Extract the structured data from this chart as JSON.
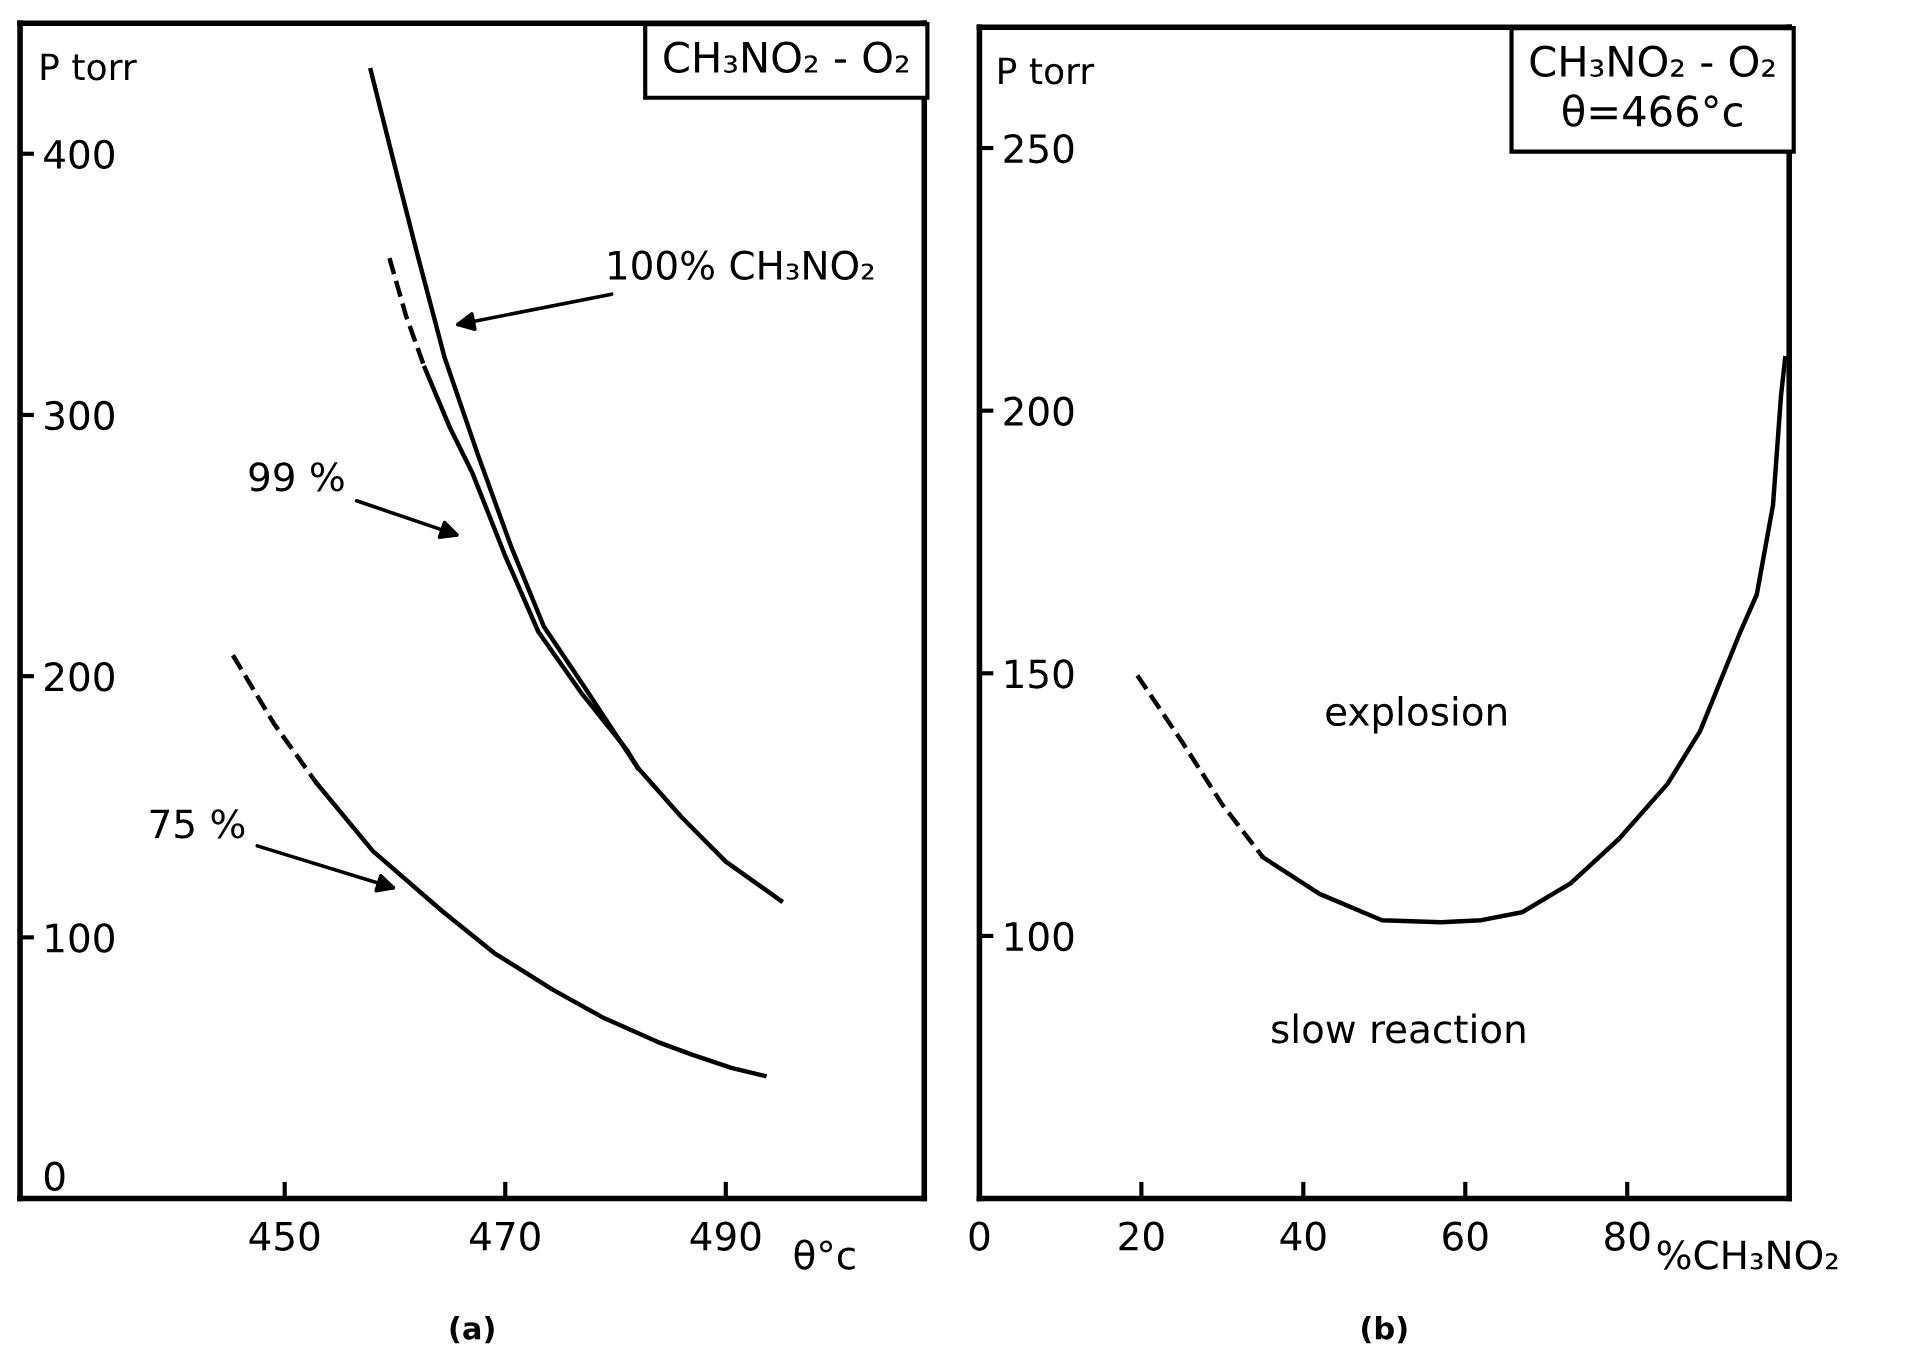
{
  "chart_data": [
    {
      "type": "line",
      "title": "CH₃NO₂ - O₂",
      "xlabel": "θ°c",
      "ylabel": "P torr",
      "xlim": [
        426,
        508
      ],
      "ylim": [
        0,
        450
      ],
      "xticks": [
        450,
        470,
        490
      ],
      "yticks": [
        0,
        100,
        200,
        300,
        400
      ],
      "grid": false,
      "series": [
        {
          "color": "#000000",
          "line_style": "solid",
          "x": [
            457.8,
            460,
            462,
            464.5,
            467.5,
            470.5,
            473.5,
            477,
            482,
            486,
            490,
            495
          ],
          "values": [
            432,
            395,
            362,
            322,
            285,
            250,
            219,
            197,
            165,
            146,
            129,
            114
          ]
        },
        {
          "color": "#000000",
          "line_style": "dashed",
          "x": [
            459.5,
            461,
            462.7
          ],
          "values": [
            360,
            338,
            318
          ]
        },
        {
          "color": "#000000",
          "line_style": "solid",
          "x": [
            462.7,
            465,
            467,
            470,
            473,
            477,
            481,
            482
          ],
          "values": [
            318,
            295,
            278,
            246,
            217,
            193,
            172,
            165
          ]
        },
        {
          "color": "#000000",
          "line_style": "dashed",
          "x": [
            445.3,
            449,
            452.9
          ],
          "values": [
            208,
            182,
            159
          ]
        },
        {
          "color": "#000000",
          "line_style": "solid",
          "x": [
            452.9,
            458,
            464.3,
            469,
            474.3,
            479,
            483.8,
            487,
            490.5,
            493.5
          ],
          "values": [
            159,
            133,
            110,
            94,
            80,
            69,
            60,
            55,
            50,
            47
          ]
        }
      ],
      "annotations": [
        "100% CH₃NO₂",
        "99 %",
        "75 %",
        "(a)"
      ]
    },
    {
      "type": "line",
      "title": "CH₃NO₂ - O₂",
      "subtitle": "θ=466°c",
      "xlabel": "%CH₃NO₂",
      "ylabel": "P torr",
      "xlim": [
        0,
        100
      ],
      "ylim": [
        50,
        273
      ],
      "xticks": [
        0,
        20,
        40,
        60,
        80
      ],
      "yticks": [
        100,
        150,
        200,
        250
      ],
      "grid": false,
      "series": [
        {
          "color": "#000000",
          "line_style": "dashed",
          "x": [
            19.5,
            25,
            30,
            35
          ],
          "values": [
            149.6,
            137,
            125,
            115
          ]
        },
        {
          "color": "#000000",
          "line_style": "solid",
          "x": [
            35,
            42,
            49.7,
            57,
            62,
            67,
            73,
            79,
            85,
            89,
            94,
            96,
            98,
            99,
            99.5
          ],
          "values": [
            115,
            108,
            103,
            102.6,
            103,
            104.5,
            110,
            118.5,
            129,
            139,
            158,
            165,
            182,
            203,
            210
          ]
        }
      ],
      "annotations": [
        "explosion",
        "slow reaction",
        "(b)"
      ]
    }
  ]
}
